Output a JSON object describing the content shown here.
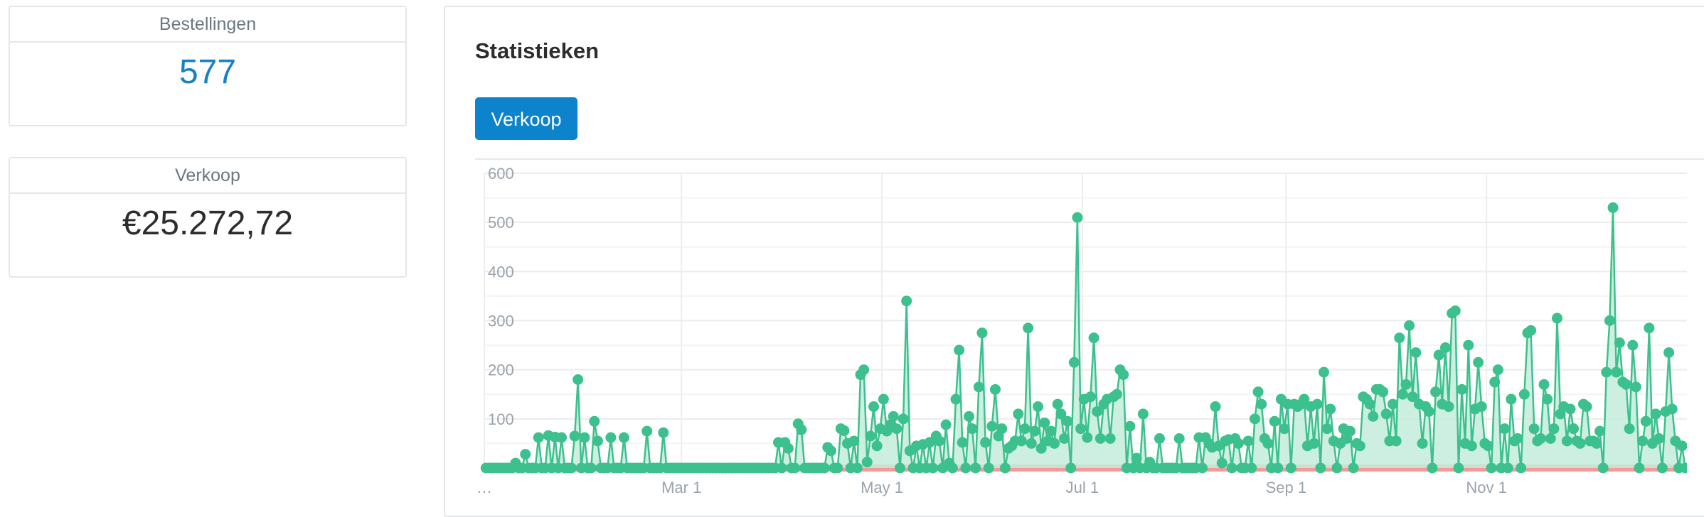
{
  "cards": [
    {
      "title": "Bestellingen",
      "value": "577"
    },
    {
      "title": "Verkoop",
      "value": "€25.272,72"
    }
  ],
  "stats": {
    "title": "Statistieken",
    "button_label": "Verkoop"
  },
  "colors": {
    "accent": "#0c83cb",
    "orders_value": "#1681c4",
    "series_line": "#3cc08e",
    "series_fill": "#c4ecdc",
    "zero_band": "#f59a9a"
  },
  "chart_data": {
    "type": "area",
    "x_start": "2024-01-01",
    "x_end": "2024-12-31",
    "xlabel": "",
    "ylabel": "",
    "ylim": [
      0,
      600
    ],
    "y_ticks": [
      600,
      500,
      400,
      300,
      200,
      100
    ],
    "x_ticks": [
      "…",
      "Mar 1",
      "May 1",
      "Jul 1",
      "Sep 1",
      "Nov 1"
    ],
    "grid": true,
    "legend": "none",
    "series": [
      {
        "points": [
          [
            "2024-01-10",
            10
          ],
          [
            "2024-01-13",
            28
          ],
          [
            "2024-01-17",
            62
          ],
          [
            "2024-01-20",
            66
          ],
          [
            "2024-01-22",
            63
          ],
          [
            "2024-01-24",
            62
          ],
          [
            "2024-01-28",
            65
          ],
          [
            "2024-01-29",
            180
          ],
          [
            "2024-01-31",
            62
          ],
          [
            "2024-02-03",
            95
          ],
          [
            "2024-02-04",
            55
          ],
          [
            "2024-02-08",
            62
          ],
          [
            "2024-02-12",
            62
          ],
          [
            "2024-02-19",
            75
          ],
          [
            "2024-02-24",
            72
          ],
          [
            "2024-03-30",
            52
          ],
          [
            "2024-04-01",
            52
          ],
          [
            "2024-04-02",
            40
          ],
          [
            "2024-04-05",
            90
          ],
          [
            "2024-04-06",
            78
          ],
          [
            "2024-04-14",
            42
          ],
          [
            "2024-04-15",
            35
          ],
          [
            "2024-04-18",
            80
          ],
          [
            "2024-04-19",
            76
          ],
          [
            "2024-04-20",
            50
          ],
          [
            "2024-04-22",
            55
          ],
          [
            "2024-04-24",
            190
          ],
          [
            "2024-04-25",
            200
          ],
          [
            "2024-04-26",
            12
          ],
          [
            "2024-04-27",
            65
          ],
          [
            "2024-04-28",
            125
          ],
          [
            "2024-04-29",
            45
          ],
          [
            "2024-04-30",
            80
          ],
          [
            "2024-05-01",
            140
          ],
          [
            "2024-05-02",
            75
          ],
          [
            "2024-05-03",
            88
          ],
          [
            "2024-05-04",
            105
          ],
          [
            "2024-05-05",
            80
          ],
          [
            "2024-05-07",
            100
          ],
          [
            "2024-05-08",
            340
          ],
          [
            "2024-05-09",
            35
          ],
          [
            "2024-05-11",
            45
          ],
          [
            "2024-05-13",
            48
          ],
          [
            "2024-05-15",
            52
          ],
          [
            "2024-05-17",
            65
          ],
          [
            "2024-05-18",
            55
          ],
          [
            "2024-05-20",
            88
          ],
          [
            "2024-05-21",
            10
          ],
          [
            "2024-05-23",
            140
          ],
          [
            "2024-05-24",
            240
          ],
          [
            "2024-05-25",
            52
          ],
          [
            "2024-05-27",
            105
          ],
          [
            "2024-05-28",
            80
          ],
          [
            "2024-05-30",
            165
          ],
          [
            "2024-05-31",
            275
          ],
          [
            "2024-06-01",
            52
          ],
          [
            "2024-06-03",
            85
          ],
          [
            "2024-06-04",
            160
          ],
          [
            "2024-06-05",
            65
          ],
          [
            "2024-06-06",
            80
          ],
          [
            "2024-06-08",
            40
          ],
          [
            "2024-06-09",
            45
          ],
          [
            "2024-06-10",
            55
          ],
          [
            "2024-06-11",
            110
          ],
          [
            "2024-06-12",
            55
          ],
          [
            "2024-06-13",
            80
          ],
          [
            "2024-06-14",
            285
          ],
          [
            "2024-06-15",
            50
          ],
          [
            "2024-06-16",
            75
          ],
          [
            "2024-06-17",
            125
          ],
          [
            "2024-06-18",
            40
          ],
          [
            "2024-06-19",
            92
          ],
          [
            "2024-06-20",
            55
          ],
          [
            "2024-06-21",
            75
          ],
          [
            "2024-06-22",
            50
          ],
          [
            "2024-06-23",
            130
          ],
          [
            "2024-06-24",
            110
          ],
          [
            "2024-06-25",
            60
          ],
          [
            "2024-06-26",
            95
          ],
          [
            "2024-06-28",
            215
          ],
          [
            "2024-06-29",
            510
          ],
          [
            "2024-06-30",
            80
          ],
          [
            "2024-07-01",
            140
          ],
          [
            "2024-07-02",
            62
          ],
          [
            "2024-07-03",
            145
          ],
          [
            "2024-07-04",
            265
          ],
          [
            "2024-07-05",
            115
          ],
          [
            "2024-07-06",
            60
          ],
          [
            "2024-07-07",
            130
          ],
          [
            "2024-07-08",
            140
          ],
          [
            "2024-07-09",
            60
          ],
          [
            "2024-07-10",
            145
          ],
          [
            "2024-07-11",
            150
          ],
          [
            "2024-07-12",
            200
          ],
          [
            "2024-07-13",
            190
          ],
          [
            "2024-07-15",
            85
          ],
          [
            "2024-07-17",
            20
          ],
          [
            "2024-07-19",
            110
          ],
          [
            "2024-07-21",
            12
          ],
          [
            "2024-07-24",
            60
          ],
          [
            "2024-07-30",
            60
          ],
          [
            "2024-08-05",
            62
          ],
          [
            "2024-08-07",
            62
          ],
          [
            "2024-08-08",
            50
          ],
          [
            "2024-08-09",
            42
          ],
          [
            "2024-08-10",
            125
          ],
          [
            "2024-08-11",
            45
          ],
          [
            "2024-08-12",
            10
          ],
          [
            "2024-08-13",
            55
          ],
          [
            "2024-08-14",
            58
          ],
          [
            "2024-08-16",
            60
          ],
          [
            "2024-08-17",
            50
          ],
          [
            "2024-08-20",
            55
          ],
          [
            "2024-08-22",
            100
          ],
          [
            "2024-08-23",
            155
          ],
          [
            "2024-08-24",
            130
          ],
          [
            "2024-08-25",
            60
          ],
          [
            "2024-08-26",
            50
          ],
          [
            "2024-08-28",
            95
          ],
          [
            "2024-08-30",
            140
          ],
          [
            "2024-08-31",
            80
          ],
          [
            "2024-09-01",
            130
          ],
          [
            "2024-09-03",
            130
          ],
          [
            "2024-09-04",
            125
          ],
          [
            "2024-09-05",
            130
          ],
          [
            "2024-09-06",
            140
          ],
          [
            "2024-09-07",
            45
          ],
          [
            "2024-09-08",
            125
          ],
          [
            "2024-09-09",
            50
          ],
          [
            "2024-09-10",
            130
          ],
          [
            "2024-09-12",
            195
          ],
          [
            "2024-09-13",
            80
          ],
          [
            "2024-09-14",
            120
          ],
          [
            "2024-09-15",
            55
          ],
          [
            "2024-09-17",
            50
          ],
          [
            "2024-09-18",
            80
          ],
          [
            "2024-09-19",
            60
          ],
          [
            "2024-09-20",
            75
          ],
          [
            "2024-09-22",
            50
          ],
          [
            "2024-09-23",
            45
          ],
          [
            "2024-09-24",
            145
          ],
          [
            "2024-09-25",
            140
          ],
          [
            "2024-09-26",
            130
          ],
          [
            "2024-09-27",
            105
          ],
          [
            "2024-09-28",
            160
          ],
          [
            "2024-09-29",
            160
          ],
          [
            "2024-09-30",
            155
          ],
          [
            "2024-10-01",
            110
          ],
          [
            "2024-10-02",
            55
          ],
          [
            "2024-10-03",
            130
          ],
          [
            "2024-10-04",
            55
          ],
          [
            "2024-10-05",
            265
          ],
          [
            "2024-10-06",
            150
          ],
          [
            "2024-10-07",
            170
          ],
          [
            "2024-10-08",
            290
          ],
          [
            "2024-10-09",
            145
          ],
          [
            "2024-10-10",
            235
          ],
          [
            "2024-10-11",
            130
          ],
          [
            "2024-10-12",
            50
          ],
          [
            "2024-10-13",
            125
          ],
          [
            "2024-10-14",
            115
          ],
          [
            "2024-10-16",
            155
          ],
          [
            "2024-10-17",
            230
          ],
          [
            "2024-10-18",
            130
          ],
          [
            "2024-10-19",
            245
          ],
          [
            "2024-10-20",
            125
          ],
          [
            "2024-10-21",
            315
          ],
          [
            "2024-10-22",
            320
          ],
          [
            "2024-10-24",
            160
          ],
          [
            "2024-10-25",
            50
          ],
          [
            "2024-10-26",
            250
          ],
          [
            "2024-10-27",
            45
          ],
          [
            "2024-10-28",
            120
          ],
          [
            "2024-10-29",
            215
          ],
          [
            "2024-10-30",
            125
          ],
          [
            "2024-10-31",
            50
          ],
          [
            "2024-11-01",
            45
          ],
          [
            "2024-11-03",
            175
          ],
          [
            "2024-11-04",
            200
          ],
          [
            "2024-11-06",
            80
          ],
          [
            "2024-11-08",
            140
          ],
          [
            "2024-11-09",
            55
          ],
          [
            "2024-11-10",
            60
          ],
          [
            "2024-11-12",
            150
          ],
          [
            "2024-11-13",
            275
          ],
          [
            "2024-11-14",
            280
          ],
          [
            "2024-11-15",
            80
          ],
          [
            "2024-11-16",
            55
          ],
          [
            "2024-11-17",
            60
          ],
          [
            "2024-11-18",
            170
          ],
          [
            "2024-11-19",
            140
          ],
          [
            "2024-11-20",
            60
          ],
          [
            "2024-11-21",
            80
          ],
          [
            "2024-11-22",
            305
          ],
          [
            "2024-11-23",
            110
          ],
          [
            "2024-11-24",
            125
          ],
          [
            "2024-11-25",
            55
          ],
          [
            "2024-11-26",
            120
          ],
          [
            "2024-11-27",
            80
          ],
          [
            "2024-11-28",
            55
          ],
          [
            "2024-11-29",
            50
          ],
          [
            "2024-11-30",
            130
          ],
          [
            "2024-12-01",
            125
          ],
          [
            "2024-12-02",
            55
          ],
          [
            "2024-12-03",
            55
          ],
          [
            "2024-12-04",
            50
          ],
          [
            "2024-12-05",
            75
          ],
          [
            "2024-12-07",
            195
          ],
          [
            "2024-12-08",
            300
          ],
          [
            "2024-12-09",
            530
          ],
          [
            "2024-12-10",
            195
          ],
          [
            "2024-12-11",
            255
          ],
          [
            "2024-12-12",
            175
          ],
          [
            "2024-12-13",
            170
          ],
          [
            "2024-12-14",
            80
          ],
          [
            "2024-12-15",
            250
          ],
          [
            "2024-12-16",
            165
          ],
          [
            "2024-12-18",
            55
          ],
          [
            "2024-12-19",
            95
          ],
          [
            "2024-12-20",
            285
          ],
          [
            "2024-12-21",
            50
          ],
          [
            "2024-12-22",
            110
          ],
          [
            "2024-12-23",
            60
          ],
          [
            "2024-12-25",
            115
          ],
          [
            "2024-12-26",
            235
          ],
          [
            "2024-12-27",
            120
          ],
          [
            "2024-12-28",
            55
          ],
          [
            "2024-12-30",
            45
          ]
        ]
      }
    ]
  }
}
